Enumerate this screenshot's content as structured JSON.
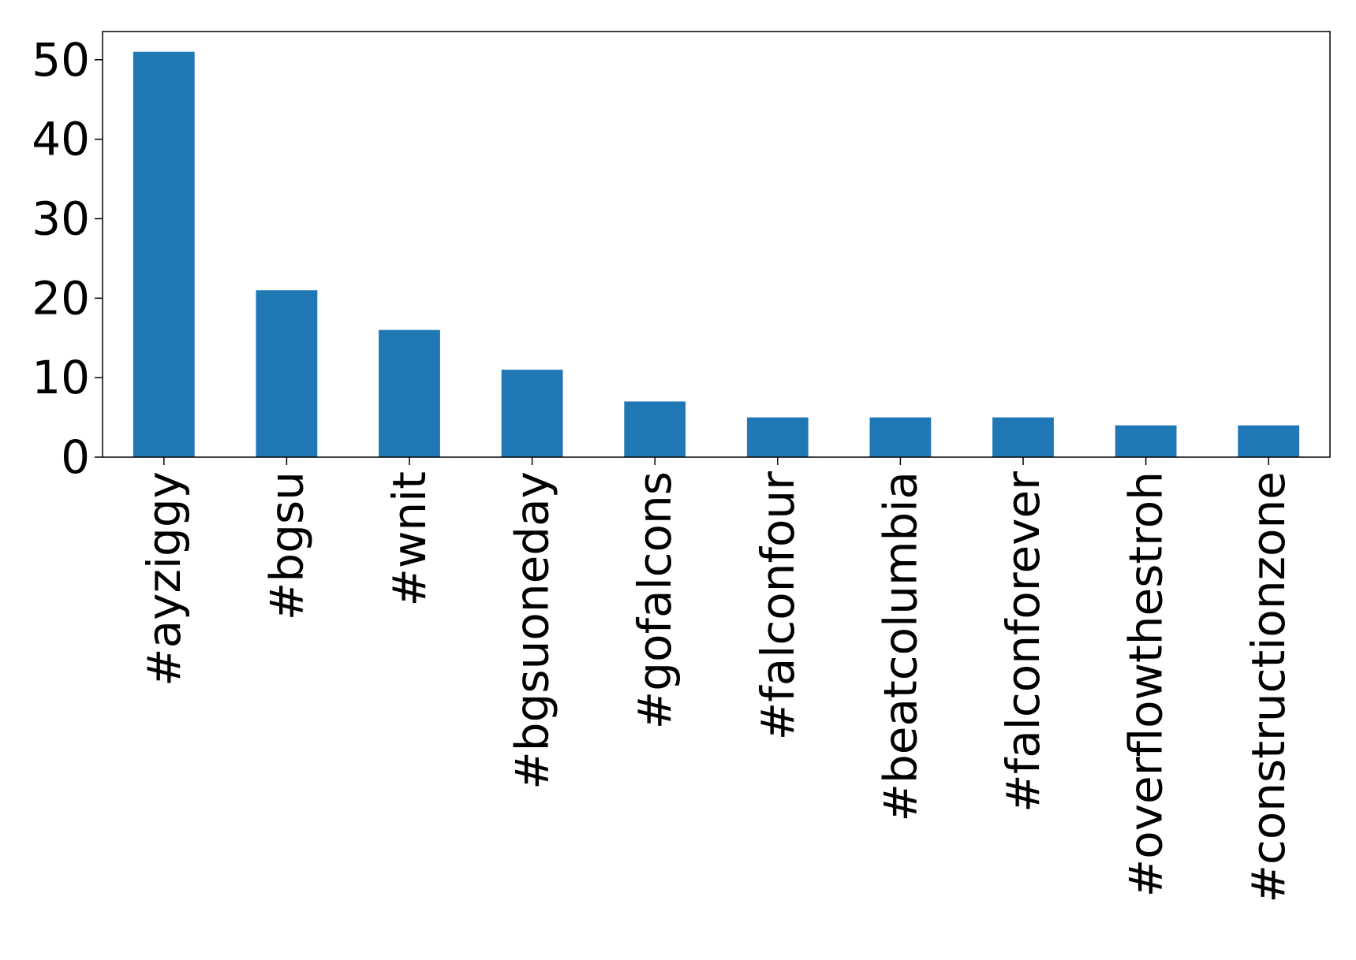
{
  "chart_data": {
    "type": "bar",
    "categories": [
      "#ayziggy",
      "#bgsu",
      "#wnit",
      "#bgsuoneday",
      "#gofalcons",
      "#falconfour",
      "#beatcolumbia",
      "#falconforever",
      "#overflowthestroh",
      "#constructionzone"
    ],
    "values": [
      51,
      21,
      16,
      11,
      7,
      5,
      5,
      5,
      4,
      4
    ],
    "title": "",
    "xlabel": "",
    "ylabel": "",
    "ylim": [
      0,
      53.55
    ],
    "yticks": [
      0,
      10,
      20,
      30,
      40,
      50
    ],
    "grid": false,
    "colors": {
      "bar": "#1f77b4",
      "axis": "#000000",
      "background": "#ffffff"
    }
  }
}
